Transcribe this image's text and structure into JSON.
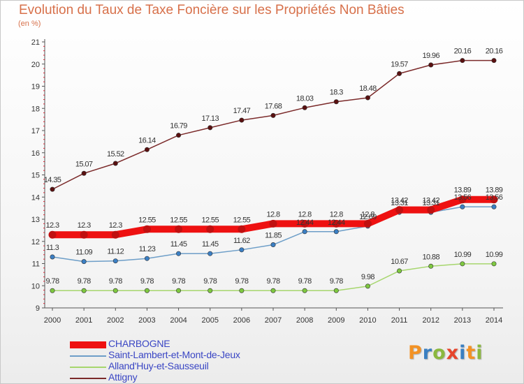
{
  "header": {
    "title": "Evolution du Taux de Taxe Foncière sur les Propriétés Non Bâties",
    "unit": "(en %)"
  },
  "logo": {
    "text": "Proxiti",
    "colors": [
      "#f39224",
      "#3a7fc1",
      "#8bb83f",
      "#e6452c",
      "#3a7fc1",
      "#f39224",
      "#8bb83f"
    ]
  },
  "chart_data": {
    "type": "line",
    "title": "Evolution du Taux de Taxe Foncière sur les Propriétés Non Bâties",
    "ylabel": "(en %)",
    "xlabel": "",
    "categories": [
      "2000",
      "2001",
      "2002",
      "2003",
      "2004",
      "2005",
      "2006",
      "2007",
      "2008",
      "2009",
      "2010",
      "2011",
      "2012",
      "2013",
      "2014"
    ],
    "y_ticks": [
      9,
      10,
      11,
      12,
      13,
      14,
      15,
      16,
      17,
      18,
      19,
      20,
      21
    ],
    "ylim": [
      9,
      21
    ],
    "grid": false,
    "legend_position": "bottom-left",
    "series": [
      {
        "name": "CHARBOGNE",
        "color": "#ee1111",
        "values": [
          12.3,
          12.3,
          12.3,
          12.55,
          12.55,
          12.55,
          12.55,
          12.8,
          12.8,
          12.8,
          12.8,
          13.42,
          13.42,
          13.89,
          13.89
        ],
        "labels": [
          "12.3",
          "12.3",
          "12.3",
          "12.55",
          "12.55",
          "12.55",
          "12.55",
          "12.8",
          "12.8",
          "12.8",
          "12.8",
          "13.42",
          "13.42",
          "13.89",
          "13.89"
        ]
      },
      {
        "name": "Saint-Lambert-et-Mont-de-Jeux",
        "color": "#6d9ec8",
        "values": [
          11.3,
          11.09,
          11.12,
          11.23,
          11.45,
          11.45,
          11.62,
          11.85,
          12.44,
          12.44,
          12.69,
          13.31,
          13.31,
          13.56,
          13.56
        ],
        "labels": [
          "11.3",
          "11.09",
          "11.12",
          "11.23",
          "11.45",
          "11.45",
          "11.62",
          "11.85",
          "12.44",
          "12.44",
          "12.69",
          "13.31",
          "13.31",
          "13.56",
          "13.56"
        ]
      },
      {
        "name": "Alland'Huy-et-Sausseuil",
        "color": "#a6d66d",
        "values": [
          9.78,
          9.78,
          9.78,
          9.78,
          9.78,
          9.78,
          9.78,
          9.78,
          9.78,
          9.78,
          9.98,
          10.67,
          10.88,
          10.99,
          10.99
        ],
        "labels": [
          "9.78",
          "9.78",
          "9.78",
          "9.78",
          "9.78",
          "9.78",
          "9.78",
          "9.78",
          "9.78",
          "9.78",
          "9.98",
          "10.67",
          "10.88",
          "10.99",
          "10.99"
        ]
      },
      {
        "name": "Attigny",
        "color": "#7b2a2a",
        "values": [
          14.35,
          15.07,
          15.52,
          16.14,
          16.79,
          17.13,
          17.47,
          17.68,
          18.03,
          18.3,
          18.48,
          19.57,
          19.96,
          20.16,
          20.16
        ],
        "labels": [
          "14.35",
          "15.07",
          "15.52",
          "16.14",
          "16.79",
          "17.13",
          "17.47",
          "17.68",
          "18.03",
          "18.3",
          "18.48",
          "19.57",
          "19.96",
          "20.16",
          "20.16"
        ]
      }
    ]
  }
}
